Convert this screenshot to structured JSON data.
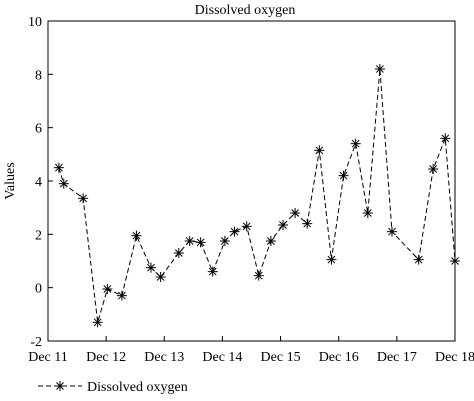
{
  "chart_data": {
    "type": "line",
    "title": "Dissolved oxygen",
    "xlabel": "",
    "ylabel": "Values",
    "xlim": [
      "Dec 11",
      "Dec 18"
    ],
    "ylim": [
      -2,
      10
    ],
    "x_ticks": [
      "Dec 11",
      "Dec 12",
      "Dec 13",
      "Dec 14",
      "Dec 15",
      "Dec 16",
      "Dec 17",
      "Dec 18"
    ],
    "y_ticks": [
      "-2",
      "0",
      "2",
      "4",
      "6",
      "8",
      "10"
    ],
    "grid": false,
    "legend_position": "bottom-left",
    "series": [
      {
        "name": "Dissolved oxygen",
        "color": "#000000",
        "line_style": "dashed",
        "marker": "asterisk",
        "points": [
          {
            "x": "Dec 11 04:30",
            "y": 4.5
          },
          {
            "x": "Dec 11 06:30",
            "y": 3.9
          },
          {
            "x": "Dec 11 14:30",
            "y": 3.35
          },
          {
            "x": "Dec 11 20:30",
            "y": -1.3
          },
          {
            "x": "Dec 12 00:30",
            "y": -0.05
          },
          {
            "x": "Dec 12 06:30",
            "y": -0.3
          },
          {
            "x": "Dec 12 12:30",
            "y": 1.95
          },
          {
            "x": "Dec 12 18:30",
            "y": 0.75
          },
          {
            "x": "Dec 12 22:30",
            "y": 0.4
          },
          {
            "x": "Dec 13 06:00",
            "y": 1.3
          },
          {
            "x": "Dec 13 10:30",
            "y": 1.75
          },
          {
            "x": "Dec 13 15:00",
            "y": 1.7
          },
          {
            "x": "Dec 13 20:00",
            "y": 0.6
          },
          {
            "x": "Dec 14 01:00",
            "y": 1.75
          },
          {
            "x": "Dec 14 05:00",
            "y": 2.1
          },
          {
            "x": "Dec 14 10:00",
            "y": 2.3
          },
          {
            "x": "Dec 14 15:00",
            "y": 0.45
          },
          {
            "x": "Dec 14 20:00",
            "y": 1.75
          },
          {
            "x": "Dec 15 01:00",
            "y": 2.35
          },
          {
            "x": "Dec 15 06:00",
            "y": 2.8
          },
          {
            "x": "Dec 15 11:00",
            "y": 2.4
          },
          {
            "x": "Dec 15 16:00",
            "y": 5.15
          },
          {
            "x": "Dec 15 21:00",
            "y": 1.05
          },
          {
            "x": "Dec 16 02:00",
            "y": 4.2
          },
          {
            "x": "Dec 16 07:00",
            "y": 5.4
          },
          {
            "x": "Dec 16 12:00",
            "y": 2.8
          },
          {
            "x": "Dec 16 17:00",
            "y": 8.2
          },
          {
            "x": "Dec 16 22:00",
            "y": 2.1
          },
          {
            "x": "Dec 17 09:00",
            "y": 1.05
          },
          {
            "x": "Dec 17 15:00",
            "y": 4.45
          },
          {
            "x": "Dec 17 20:00",
            "y": 5.6
          },
          {
            "x": "Dec 18 00:00",
            "y": 1.0
          }
        ]
      }
    ]
  }
}
